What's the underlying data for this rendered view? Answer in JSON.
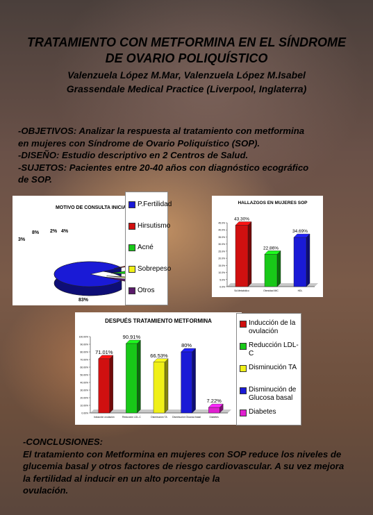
{
  "header": {
    "title_line1": "TRATAMIENTO CON METFORMINA EN EL SÍNDROME",
    "title_line2": "DE OVARIO POLIQUÍSTICO",
    "authors": "Valenzuela López M.Mar, Valenzuela López M.Isabel",
    "institution": "Grassendale Medical Practice (Liverpool, Inglaterra)"
  },
  "intro": {
    "objetivos_1": "-OBJETIVOS: Analizar la respuesta al tratamiento con metformina",
    "objetivos_2": "en mujeres con Síndrome de Ovario Poliquístico (SOP).",
    "diseno": "-DISEÑO: Estudio descriptivo en 2 Centros de Salud.",
    "sujetos_1": "-SUJETOS: Pacientes entre 20-40 años con diagnóstico ecográfico",
    "sujetos_2": "de SOP."
  },
  "conclusions": {
    "heading": "-CONCLUSIONES:",
    "line1": "El tratamiento con Metformina en mujeres con SOP reduce los niveles de",
    "line2": "glucemia basal y otros factores de riesgo cardiovascular. A su vez mejora",
    "line3": "la fertilidad al inducir en un alto porcentaje la",
    "line4": "ovulación."
  },
  "colors": {
    "blue": "#1a1ad6",
    "red": "#d01010",
    "green": "#18c818",
    "yellow": "#f0f018",
    "purple": "#5a1a6a",
    "magenta": "#e020d0"
  },
  "chart_data": [
    {
      "type": "pie",
      "title": "MOTIVO DE CONSULTA INICIAL",
      "categories": [
        "P.Fertilidad",
        "Hirsutismo",
        "Acné",
        "Sobrepeso",
        "Otros"
      ],
      "values": [
        83,
        3,
        8,
        2,
        4
      ],
      "labels": [
        "83%",
        "3%",
        "8%",
        "2%",
        "4%"
      ],
      "legend": "right"
    },
    {
      "type": "bar",
      "title": "HALLAZGOS EN MUJERES SOP",
      "categories": [
        "Sd.Metabólico",
        "Obesidad IMC",
        "HDL"
      ],
      "values": [
        43.3,
        22.86,
        34.69
      ],
      "labels": [
        "43.30%",
        "22.86%",
        "34.69%"
      ],
      "yticks": [
        "0.0%",
        "5.0%",
        "10.0%",
        "15.0%",
        "20.0%",
        "25.0%",
        "30.0%",
        "35.0%",
        "40.0%",
        "45.0%"
      ],
      "ylim": [
        0,
        45
      ]
    },
    {
      "type": "bar",
      "title": "DESPUÉS TRATAMIENTO METFORMINA",
      "categories": [
        "Inducción ovulación",
        "Reducción LDL-C",
        "Disminución TA",
        "Disminución Glucosa basal",
        "Diabetes"
      ],
      "values": [
        71.01,
        90.91,
        66.53,
        80,
        7.22
      ],
      "labels": [
        "71.01%",
        "90.91%",
        "66.53%",
        "80%",
        "7.22%"
      ],
      "legend": [
        "Inducción de la ovulación",
        "Reducción LDL-C",
        "Disminución TA",
        "Disminución de Glucosa basal",
        "Diabetes"
      ],
      "yticks": [
        "0.00%",
        "10.00%",
        "20.00%",
        "30.00%",
        "40.00%",
        "50.00%",
        "60.00%",
        "70.00%",
        "80.00%",
        "90.00%",
        "100.00%"
      ],
      "ylim": [
        0,
        100
      ]
    }
  ]
}
